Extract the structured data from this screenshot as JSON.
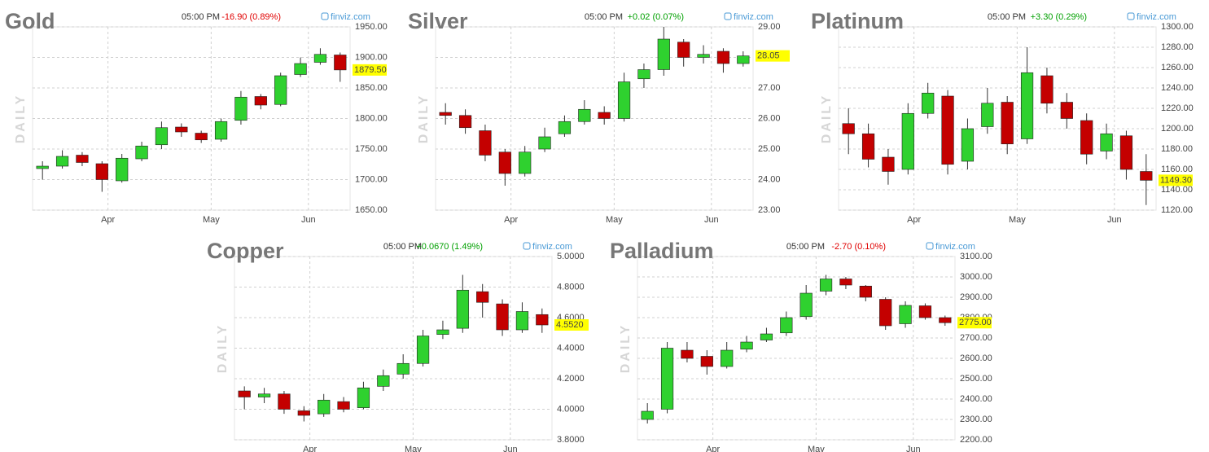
{
  "chart_data": [
    {
      "type": "candlestick",
      "title": "Gold",
      "time": "05:00 PM",
      "change": "-16.90 (0.89%)",
      "change_color": "#e00000",
      "source": "finviz.com",
      "ylabel": "DAILY",
      "open": [
        1718,
        1722,
        1740,
        1726,
        1698,
        1734,
        1757,
        1786,
        1776,
        1766,
        1797,
        1836,
        1823,
        1872,
        1892,
        1904
      ],
      "high": [
        1730,
        1748,
        1745,
        1730,
        1742,
        1762,
        1795,
        1792,
        1780,
        1800,
        1845,
        1840,
        1875,
        1900,
        1915,
        1908
      ],
      "low": [
        1700,
        1718,
        1722,
        1680,
        1695,
        1730,
        1750,
        1770,
        1760,
        1762,
        1790,
        1815,
        1820,
        1868,
        1888,
        1860
      ],
      "close": [
        1722,
        1738,
        1728,
        1700,
        1735,
        1755,
        1785,
        1778,
        1765,
        1795,
        1835,
        1822,
        1870,
        1890,
        1905,
        1879.5
      ],
      "last_label": "1879.50",
      "ylim": [
        1650,
        1950
      ],
      "yticks": [
        {
          "value": 1650,
          "label": "1650.00"
        },
        {
          "value": 1700,
          "label": "1700.00"
        },
        {
          "value": 1750,
          "label": "1750.00"
        },
        {
          "value": 1800,
          "label": "1800.00"
        },
        {
          "value": 1850,
          "label": "1850.00"
        },
        {
          "value": 1900,
          "label": "1900.00"
        },
        {
          "value": 1950,
          "label": "1950.00"
        }
      ],
      "xticks": [
        {
          "value": 3.3,
          "label": "Apr"
        },
        {
          "value": 8.5,
          "label": "May"
        },
        {
          "value": 13.4,
          "label": "Jun"
        }
      ],
      "grid": true,
      "up_color": "#2fd12f",
      "down_color": "#c40000"
    },
    {
      "type": "candlestick",
      "title": "Silver",
      "time": "05:00 PM",
      "change": "+0.02 (0.07%)",
      "change_color": "#00a000",
      "source": "finviz.com",
      "ylabel": "DAILY",
      "open": [
        26.2,
        26.1,
        25.6,
        24.9,
        24.2,
        25.0,
        25.5,
        25.9,
        26.2,
        26.0,
        27.3,
        27.6,
        28.5,
        28.0,
        28.2,
        27.8
      ],
      "high": [
        26.5,
        26.3,
        25.8,
        25.0,
        25.1,
        25.7,
        26.1,
        26.6,
        26.4,
        27.5,
        27.8,
        29.0,
        28.6,
        28.4,
        28.3,
        28.2
      ],
      "low": [
        25.8,
        25.5,
        24.6,
        23.8,
        24.1,
        24.9,
        25.4,
        25.8,
        25.8,
        25.9,
        27.0,
        27.4,
        27.7,
        27.8,
        27.5,
        27.7
      ],
      "close": [
        26.1,
        25.7,
        24.8,
        24.2,
        24.9,
        25.4,
        25.9,
        26.3,
        26.0,
        27.2,
        27.6,
        28.6,
        28.0,
        28.1,
        27.8,
        28.05
      ],
      "last_label": "28.05",
      "ylim": [
        23,
        29
      ],
      "yticks": [
        {
          "value": 23,
          "label": "23.00"
        },
        {
          "value": 24,
          "label": "24.00"
        },
        {
          "value": 25,
          "label": "25.00"
        },
        {
          "value": 26,
          "label": "26.00"
        },
        {
          "value": 27,
          "label": "27.00"
        },
        {
          "value": 28,
          "label": "28.00"
        },
        {
          "value": 29,
          "label": "29.00"
        }
      ],
      "xticks": [
        {
          "value": 3.3,
          "label": "Apr"
        },
        {
          "value": 8.5,
          "label": "May"
        },
        {
          "value": 13.4,
          "label": "Jun"
        }
      ],
      "grid": true,
      "up_color": "#2fd12f",
      "down_color": "#c40000"
    },
    {
      "type": "candlestick",
      "title": "Platinum",
      "time": "05:00 PM",
      "change": "+3.30 (0.29%)",
      "change_color": "#00a000",
      "source": "finviz.com",
      "ylabel": "DAILY",
      "open": [
        1205,
        1195,
        1172,
        1160,
        1215,
        1232,
        1168,
        1202,
        1226,
        1190,
        1252,
        1226,
        1208,
        1178,
        1193,
        1158
      ],
      "high": [
        1220,
        1205,
        1180,
        1225,
        1245,
        1238,
        1210,
        1240,
        1232,
        1280,
        1260,
        1235,
        1215,
        1205,
        1198,
        1175
      ],
      "low": [
        1175,
        1162,
        1145,
        1155,
        1210,
        1155,
        1160,
        1195,
        1175,
        1185,
        1215,
        1200,
        1165,
        1170,
        1150,
        1125
      ],
      "close": [
        1195,
        1170,
        1158,
        1215,
        1235,
        1165,
        1200,
        1225,
        1185,
        1255,
        1225,
        1210,
        1175,
        1195,
        1160,
        1149.3
      ],
      "last_label": "1149.30",
      "ylim": [
        1120,
        1300
      ],
      "yticks": [
        {
          "value": 1120,
          "label": "1120.00"
        },
        {
          "value": 1140,
          "label": "1140.00"
        },
        {
          "value": 1160,
          "label": "1160.00"
        },
        {
          "value": 1180,
          "label": "1180.00"
        },
        {
          "value": 1200,
          "label": "1200.00"
        },
        {
          "value": 1220,
          "label": "1220.00"
        },
        {
          "value": 1240,
          "label": "1240.00"
        },
        {
          "value": 1260,
          "label": "1260.00"
        },
        {
          "value": 1280,
          "label": "1280.00"
        },
        {
          "value": 1300,
          "label": "1300.00"
        }
      ],
      "xticks": [
        {
          "value": 3.3,
          "label": "Apr"
        },
        {
          "value": 8.5,
          "label": "May"
        },
        {
          "value": 13.4,
          "label": "Jun"
        }
      ],
      "grid": true,
      "up_color": "#2fd12f",
      "down_color": "#c40000"
    },
    {
      "type": "candlestick",
      "title": "Copper",
      "time": "05:00 PM",
      "change": "+0.0670 (1.49%)",
      "change_color": "#00a000",
      "source": "finviz.com",
      "ylabel": "DAILY",
      "open": [
        4.12,
        4.08,
        4.1,
        3.99,
        3.97,
        4.05,
        4.01,
        4.15,
        4.23,
        4.3,
        4.49,
        4.53,
        4.77,
        4.69,
        4.52,
        4.62
      ],
      "high": [
        4.15,
        4.14,
        4.12,
        4.02,
        4.1,
        4.08,
        4.18,
        4.26,
        4.36,
        4.52,
        4.58,
        4.88,
        4.82,
        4.72,
        4.7,
        4.66
      ],
      "low": [
        4.0,
        4.04,
        3.97,
        3.92,
        3.95,
        3.98,
        4.0,
        4.12,
        4.2,
        4.28,
        4.46,
        4.5,
        4.6,
        4.48,
        4.5,
        4.5
      ],
      "close": [
        4.08,
        4.1,
        4.0,
        3.96,
        4.06,
        4.0,
        4.14,
        4.22,
        4.3,
        4.48,
        4.52,
        4.78,
        4.7,
        4.52,
        4.64,
        4.552
      ],
      "last_label": "4.5520",
      "ylim": [
        3.8,
        5.0
      ],
      "yticks": [
        {
          "value": 3.8,
          "label": "3.8000"
        },
        {
          "value": 4.0,
          "label": "4.0000"
        },
        {
          "value": 4.2,
          "label": "4.2000"
        },
        {
          "value": 4.4,
          "label": "4.4000"
        },
        {
          "value": 4.6,
          "label": "4.6000"
        },
        {
          "value": 4.8,
          "label": "4.8000"
        },
        {
          "value": 5.0,
          "label": "5.0000"
        }
      ],
      "xticks": [
        {
          "value": 3.3,
          "label": "Apr"
        },
        {
          "value": 8.5,
          "label": "May"
        },
        {
          "value": 13.4,
          "label": "Jun"
        }
      ],
      "grid": true,
      "up_color": "#2fd12f",
      "down_color": "#c40000"
    },
    {
      "type": "candlestick",
      "title": "Palladium",
      "time": "05:00 PM",
      "change": "-2.70 (0.10%)",
      "change_color": "#e00000",
      "source": "finviz.com",
      "ylabel": "DAILY",
      "open": [
        2300,
        2350,
        2640,
        2610,
        2560,
        2645,
        2690,
        2725,
        2805,
        2930,
        2990,
        2955,
        2890,
        2770,
        2858,
        2800
      ],
      "high": [
        2380,
        2680,
        2680,
        2640,
        2680,
        2710,
        2750,
        2830,
        2960,
        3010,
        3000,
        2960,
        2900,
        2880,
        2870,
        2810
      ],
      "low": [
        2280,
        2330,
        2580,
        2520,
        2550,
        2630,
        2680,
        2710,
        2790,
        2910,
        2940,
        2880,
        2740,
        2750,
        2790,
        2760
      ],
      "close": [
        2340,
        2650,
        2600,
        2560,
        2640,
        2680,
        2720,
        2800,
        2920,
        2990,
        2960,
        2900,
        2760,
        2860,
        2800,
        2775
      ],
      "last_label": "2775.00",
      "ylim": [
        2200,
        3100
      ],
      "yticks": [
        {
          "value": 2200,
          "label": "2200.00"
        },
        {
          "value": 2300,
          "label": "2300.00"
        },
        {
          "value": 2400,
          "label": "2400.00"
        },
        {
          "value": 2500,
          "label": "2500.00"
        },
        {
          "value": 2600,
          "label": "2600.00"
        },
        {
          "value": 2700,
          "label": "2700.00"
        },
        {
          "value": 2800,
          "label": "2800.00"
        },
        {
          "value": 2900,
          "label": "2900.00"
        },
        {
          "value": 3000,
          "label": "3000.00"
        },
        {
          "value": 3100,
          "label": "3100.00"
        }
      ],
      "xticks": [
        {
          "value": 3.3,
          "label": "Apr"
        },
        {
          "value": 8.5,
          "label": "May"
        },
        {
          "value": 13.4,
          "label": "Jun"
        }
      ],
      "grid": true,
      "up_color": "#2fd12f",
      "down_color": "#c40000"
    }
  ]
}
